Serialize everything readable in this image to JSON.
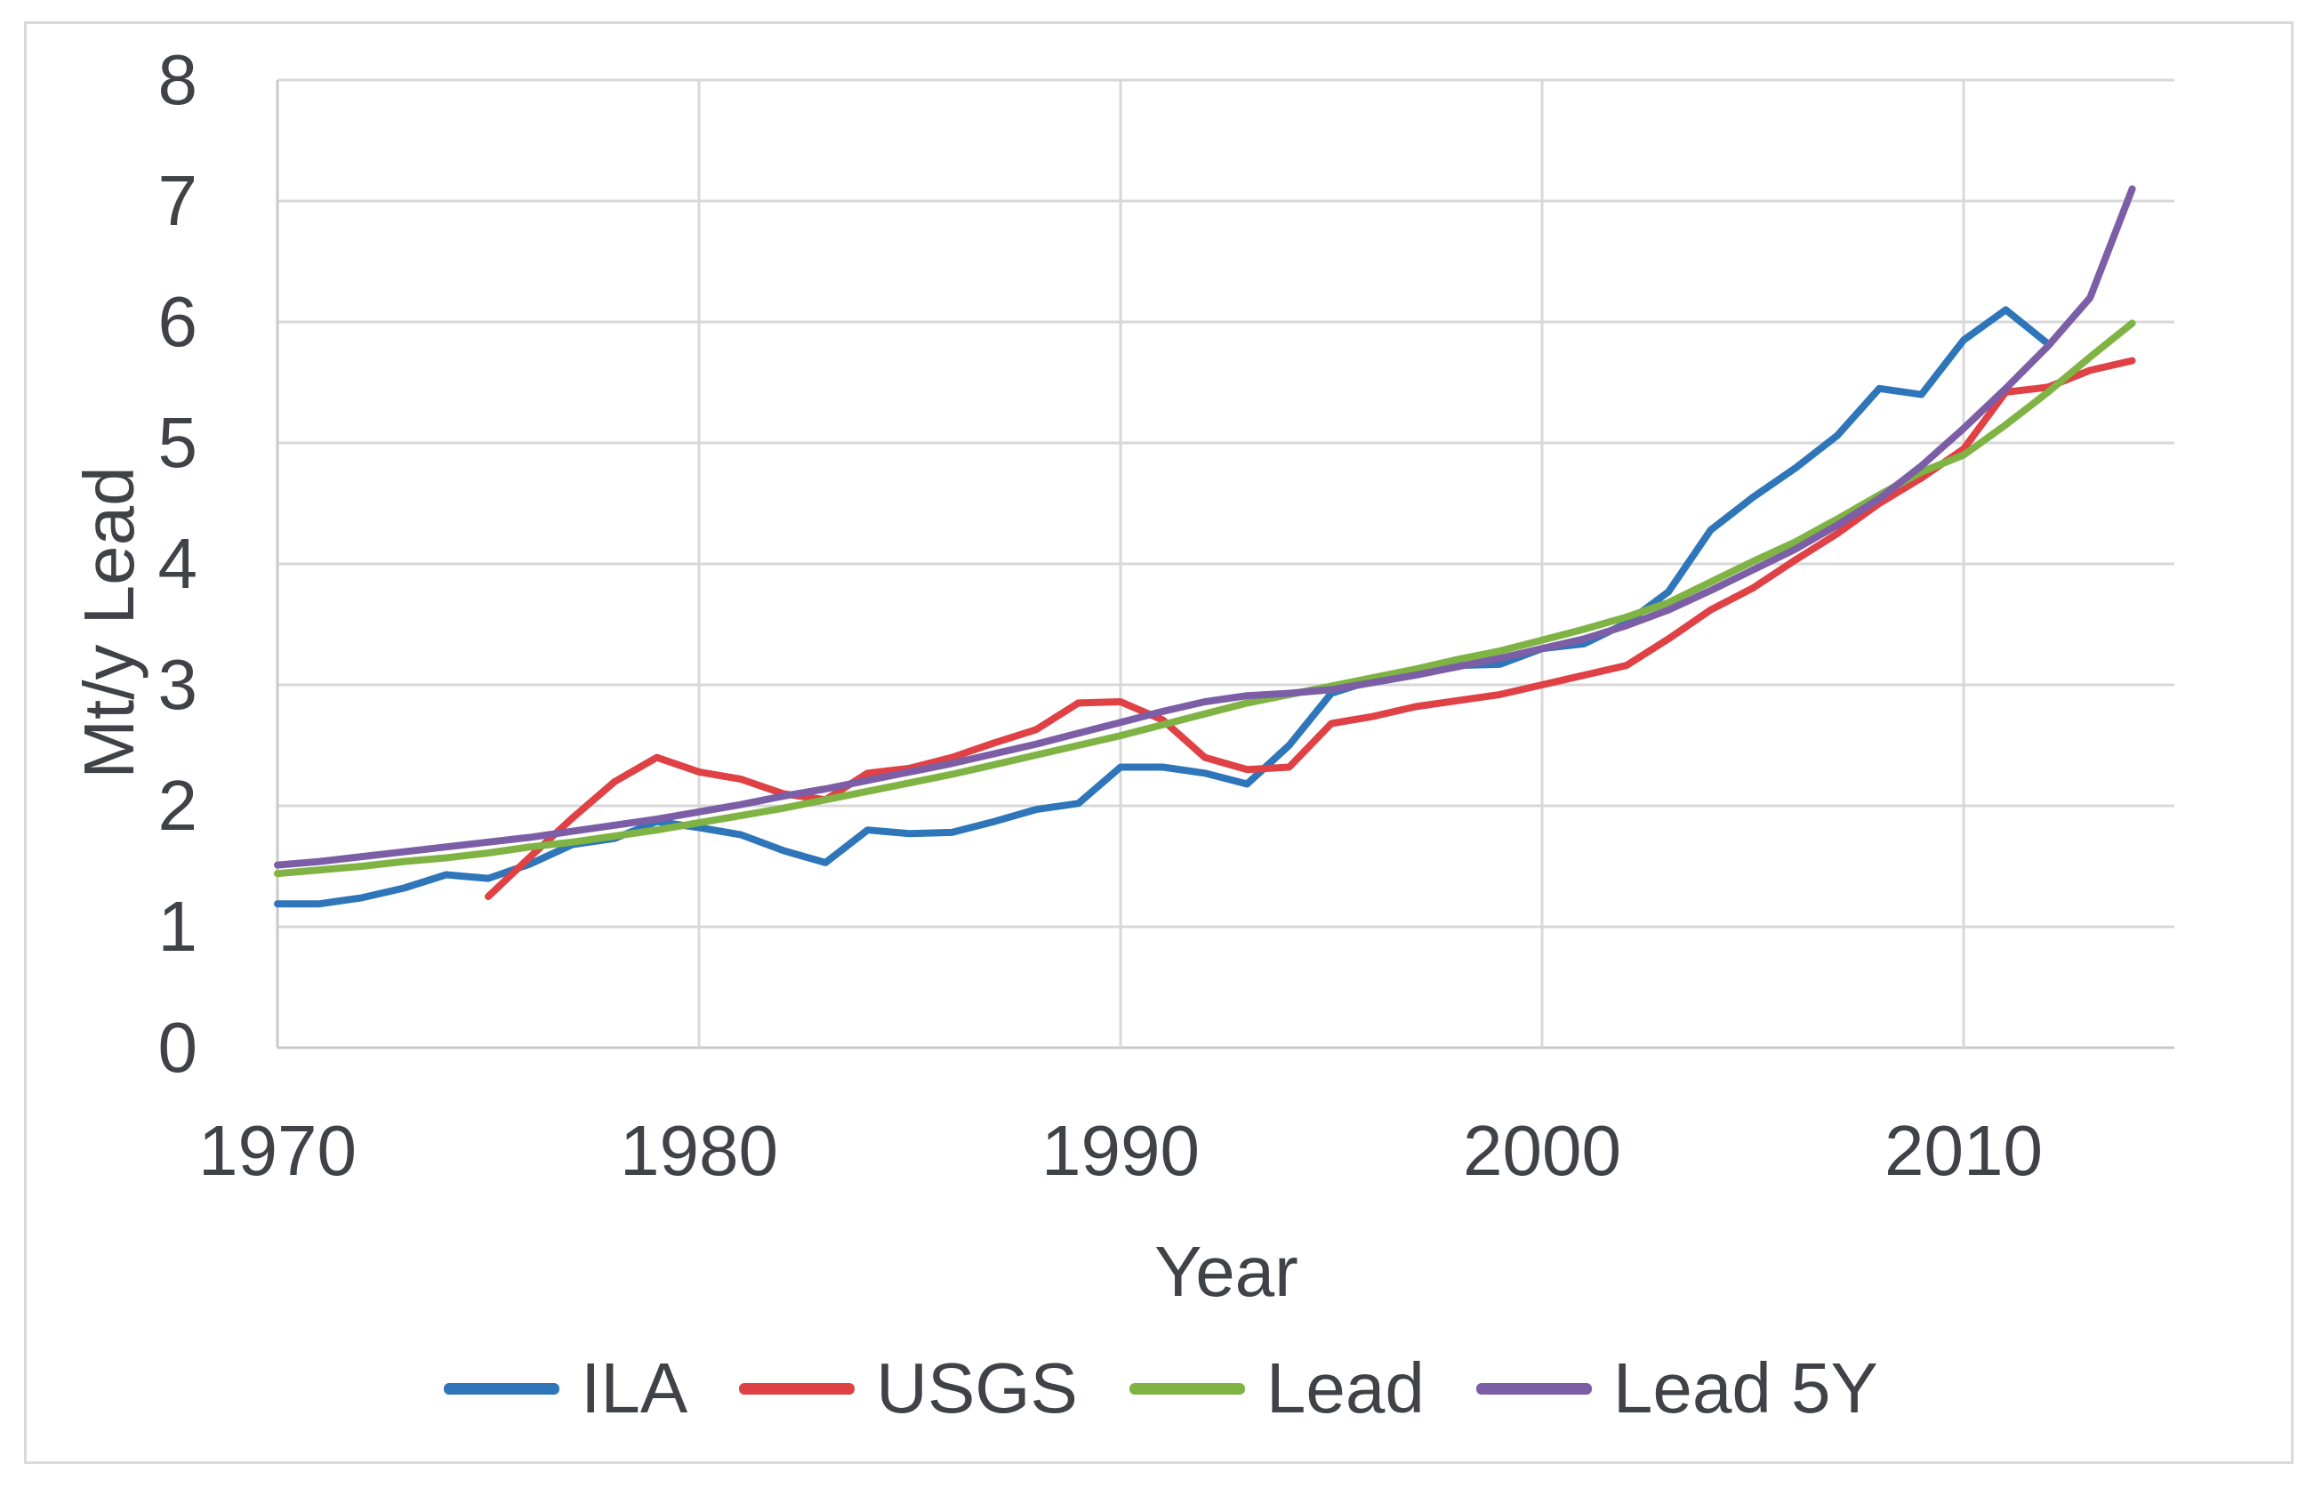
{
  "chart_data": {
    "type": "line",
    "title": "",
    "xlabel": "Year",
    "ylabel": "Mt/y Lead",
    "x_ticks": [
      1970,
      1980,
      1990,
      2000,
      2010
    ],
    "y_ticks": [
      0,
      1,
      2,
      3,
      4,
      5,
      6,
      7,
      8
    ],
    "xlim": [
      1970,
      2015
    ],
    "ylim": [
      0,
      8
    ],
    "grid": true,
    "legend_position": "bottom-center",
    "series": [
      {
        "name": "ILA",
        "color": "#2E76B9",
        "start_year": 1970,
        "values": [
          1.19,
          1.19,
          1.24,
          1.32,
          1.43,
          1.4,
          1.52,
          1.68,
          1.73,
          1.87,
          1.82,
          1.76,
          1.63,
          1.53,
          1.8,
          1.77,
          1.78,
          1.87,
          1.97,
          2.02,
          2.32,
          2.32,
          2.27,
          2.18,
          2.5,
          2.93,
          3.04,
          3.11,
          3.16,
          3.17,
          3.3,
          3.34,
          3.51,
          3.77,
          4.28,
          4.55,
          4.79,
          5.06,
          5.45,
          5.4,
          5.85,
          6.1,
          5.82
        ]
      },
      {
        "name": "USGS",
        "color": "#DF4145",
        "start_year": 1975,
        "values": [
          1.25,
          1.58,
          1.9,
          2.2,
          2.4,
          2.28,
          2.22,
          2.1,
          2.05,
          2.27,
          2.31,
          2.4,
          2.52,
          2.63,
          2.85,
          2.86,
          2.71,
          2.4,
          2.3,
          2.32,
          2.68,
          2.74,
          2.82,
          2.87,
          2.92,
          3.0,
          3.08,
          3.16,
          3.38,
          3.62,
          3.8,
          4.03,
          4.25,
          4.5,
          4.71,
          4.95,
          5.42,
          5.46,
          5.6,
          5.68
        ]
      },
      {
        "name": "Lead",
        "color": "#7FB344",
        "start_year": 1970,
        "values": [
          1.44,
          1.47,
          1.5,
          1.54,
          1.57,
          1.61,
          1.66,
          1.7,
          1.75,
          1.8,
          1.86,
          1.92,
          1.98,
          2.05,
          2.12,
          2.19,
          2.26,
          2.34,
          2.42,
          2.5,
          2.58,
          2.67,
          2.76,
          2.85,
          2.92,
          2.99,
          3.06,
          3.13,
          3.21,
          3.28,
          3.37,
          3.46,
          3.56,
          3.68,
          3.85,
          4.02,
          4.18,
          4.37,
          4.57,
          4.76,
          4.9,
          5.15,
          5.42,
          5.71,
          5.99
        ]
      },
      {
        "name": "Lead 5Y",
        "color": "#7C5EA7",
        "start_year": 1970,
        "values": [
          1.51,
          1.54,
          1.58,
          1.62,
          1.66,
          1.7,
          1.74,
          1.79,
          1.84,
          1.89,
          1.95,
          2.01,
          2.08,
          2.14,
          2.21,
          2.28,
          2.35,
          2.43,
          2.51,
          2.6,
          2.69,
          2.78,
          2.86,
          2.91,
          2.93,
          2.96,
          3.02,
          3.08,
          3.15,
          3.22,
          3.3,
          3.38,
          3.49,
          3.62,
          3.78,
          3.95,
          4.12,
          4.32,
          4.54,
          4.81,
          5.12,
          5.45,
          5.8,
          6.2,
          7.1
        ]
      }
    ]
  },
  "styles": {
    "gridline_color": "#D8D8D8",
    "axis_line_color": "#C9C9C9",
    "frame_border_color": "#DADADA",
    "text_color": "#3F4347"
  }
}
